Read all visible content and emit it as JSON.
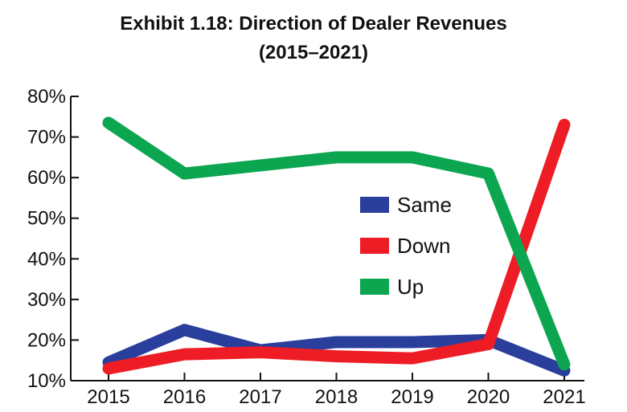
{
  "title_line1": "Exhibit 1.18: Direction of Dealer Revenues",
  "title_line2": "(2015–2021)",
  "chart_data": {
    "type": "line",
    "title": "Exhibit 1.18: Direction of Dealer Revenues (2015–2021)",
    "categories": [
      "2015",
      "2016",
      "2017",
      "2018",
      "2019",
      "2020",
      "2021"
    ],
    "ylim": [
      10,
      80
    ],
    "yticks": [
      "10%",
      "20%",
      "30%",
      "40%",
      "50%",
      "60%",
      "70%",
      "80%"
    ],
    "ytick_values": [
      10,
      20,
      30,
      40,
      50,
      60,
      70,
      80
    ],
    "grid": false,
    "legend_position": "center-right",
    "series": [
      {
        "name": "Same",
        "color": "#2a3f9b",
        "values": [
          14.5,
          22.5,
          17.5,
          19.5,
          19.5,
          20,
          12.5
        ]
      },
      {
        "name": "Down",
        "color": "#ee1c25",
        "values": [
          13,
          16.5,
          17,
          16,
          15.5,
          19,
          73
        ]
      },
      {
        "name": "Up",
        "color": "#0ca650",
        "values": [
          73.5,
          61,
          63,
          65,
          65,
          61,
          14
        ]
      }
    ]
  }
}
